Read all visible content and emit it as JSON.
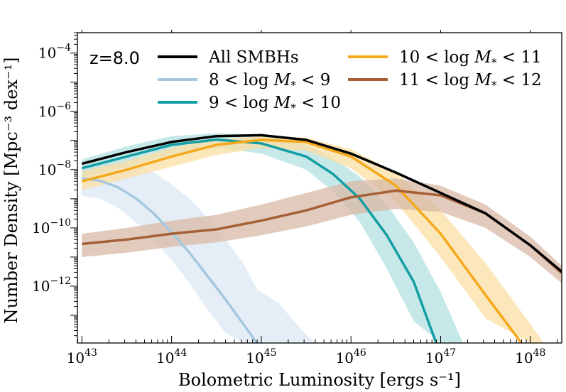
{
  "chart_data": {
    "type": "line",
    "annotation": "z=8.0",
    "xlabel": "Bolometric Luminosity [ergs s⁻¹]",
    "ylabel": "Number Density [Mpc⁻³ dex⁻¹]",
    "x_scale": "log",
    "y_scale": "log",
    "xlim_log10": [
      42.95,
      48.35
    ],
    "ylim_log10": [
      -13.95,
      -3.3
    ],
    "x_ticks": [
      {
        "value": 43,
        "base": "10",
        "exp": "43"
      },
      {
        "value": 44,
        "base": "10",
        "exp": "44"
      },
      {
        "value": 45,
        "base": "10",
        "exp": "45"
      },
      {
        "value": 46,
        "base": "10",
        "exp": "46"
      },
      {
        "value": 47,
        "base": "10",
        "exp": "47"
      },
      {
        "value": 48,
        "base": "10",
        "exp": "48"
      }
    ],
    "y_ticks": [
      {
        "value": -4,
        "base": "10",
        "exp": "−4"
      },
      {
        "value": -6,
        "base": "10",
        "exp": "−6"
      },
      {
        "value": -8,
        "base": "10",
        "exp": "−8"
      },
      {
        "value": -10,
        "base": "10",
        "exp": "−10"
      },
      {
        "value": -12,
        "base": "10",
        "exp": "−12"
      }
    ],
    "legend_position": "top",
    "series": [
      {
        "name": "All SMBHs",
        "label_html": "All SMBHs",
        "color": "#000000",
        "band": false,
        "x": [
          43.0,
          43.5,
          44.0,
          44.5,
          45.0,
          45.5,
          46.0,
          46.5,
          47.0,
          47.5,
          48.0,
          48.35
        ],
        "y": [
          -7.8,
          -7.4,
          -7.05,
          -6.85,
          -6.82,
          -6.98,
          -7.45,
          -8.1,
          -8.8,
          -9.5,
          -10.6,
          -11.5
        ]
      },
      {
        "name": "8 < log M* < 9",
        "label_parts": [
          "8 < log ",
          "M",
          "*",
          " < 9"
        ],
        "color": "#a6c8df",
        "band_color": "#dce8f3",
        "x": [
          43.0,
          43.2,
          43.4,
          43.6,
          43.8,
          44.0,
          44.2,
          44.4,
          44.6,
          44.8,
          44.95
        ],
        "y": [
          -8.3,
          -8.38,
          -8.6,
          -8.98,
          -9.5,
          -10.15,
          -10.85,
          -11.65,
          -12.45,
          -13.3,
          -13.95
        ],
        "band_lower": [
          -8.9,
          -9.0,
          -9.3,
          -9.8,
          -10.4,
          -11.1,
          -11.9,
          -12.8,
          -13.6,
          -13.95,
          -13.95
        ],
        "band_upper": [
          -7.95,
          -7.8,
          -7.78,
          -7.85,
          -8.1,
          -8.5,
          -9.0,
          -9.65,
          -10.4,
          -11.2,
          -12.1
        ],
        "band_x": [
          43.0,
          43.2,
          43.4,
          43.6,
          43.8,
          44.0,
          44.2,
          44.4,
          44.6,
          44.8,
          44.95
        ],
        "band_upper_ext_x": [
          45.2,
          45.45,
          45.6
        ],
        "band_upper_ext_y": [
          -12.6,
          -13.5,
          -13.95
        ]
      },
      {
        "name": "9 < log M* < 10",
        "label_parts": [
          "9 < log ",
          "M",
          "*",
          " < 10"
        ],
        "color": "#139ea3",
        "band_color": "#b3e0e1",
        "x": [
          43.0,
          43.5,
          44.0,
          44.5,
          45.0,
          45.5,
          45.8,
          46.1,
          46.4,
          46.7,
          46.95
        ],
        "y": [
          -7.95,
          -7.55,
          -7.15,
          -6.97,
          -7.1,
          -7.55,
          -8.15,
          -9.0,
          -10.25,
          -11.85,
          -13.95
        ],
        "band_x": [
          43.0,
          43.5,
          44.0,
          44.5,
          45.0,
          45.5,
          45.8,
          46.1,
          46.4,
          46.7,
          47.0,
          47.25
        ],
        "band_upper": [
          -7.65,
          -7.2,
          -6.85,
          -6.75,
          -6.8,
          -7.15,
          -7.6,
          -8.25,
          -9.2,
          -10.5,
          -12.2,
          -13.95
        ],
        "band_lower": [
          -8.25,
          -7.9,
          -7.5,
          -7.25,
          -7.45,
          -8.0,
          -8.75,
          -9.8,
          -11.4,
          -13.2,
          -13.95,
          -13.95
        ]
      },
      {
        "name": "10 < log M* < 11",
        "label_parts": [
          "10 < log ",
          "M",
          "*",
          " < 11"
        ],
        "color": "#f5a81c",
        "band_color": "#fbdfa3",
        "x": [
          43.0,
          43.5,
          44.0,
          44.5,
          45.0,
          45.5,
          46.0,
          46.5,
          47.0,
          47.5,
          47.9
        ],
        "y": [
          -8.4,
          -8.0,
          -7.55,
          -7.15,
          -6.98,
          -7.05,
          -7.55,
          -8.55,
          -10.2,
          -12.3,
          -13.95
        ],
        "band_x": [
          43.0,
          43.5,
          44.0,
          44.5,
          45.0,
          45.5,
          46.0,
          46.5,
          47.0,
          47.5,
          48.0,
          48.15
        ],
        "band_upper": [
          -8.05,
          -7.7,
          -7.25,
          -6.95,
          -6.85,
          -6.9,
          -7.3,
          -8.1,
          -9.4,
          -11.2,
          -13.3,
          -13.95
        ],
        "band_lower": [
          -8.7,
          -8.3,
          -7.9,
          -7.5,
          -7.25,
          -7.35,
          -7.95,
          -9.1,
          -11.0,
          -13.1,
          -13.95,
          -13.95
        ]
      },
      {
        "name": "11 < log M* < 12",
        "label_parts": [
          "11 < log ",
          "M",
          "*",
          " < 12"
        ],
        "color": "#a65f36",
        "band_color": "#d8b9a5",
        "x": [
          43.0,
          43.5,
          44.0,
          44.5,
          45.0,
          45.5,
          46.0,
          46.5,
          47.0,
          47.5,
          48.0,
          48.35
        ],
        "y": [
          -10.55,
          -10.4,
          -10.2,
          -10.05,
          -9.75,
          -9.4,
          -8.95,
          -8.72,
          -8.88,
          -9.5,
          -10.6,
          -11.55
        ],
        "band_x": [
          43.0,
          43.5,
          44.0,
          44.5,
          45.0,
          45.5,
          46.0,
          46.5,
          47.0,
          47.5,
          48.0,
          48.35
        ],
        "band_upper": [
          -10.2,
          -10.0,
          -9.75,
          -9.55,
          -9.2,
          -8.8,
          -8.4,
          -8.3,
          -8.55,
          -9.2,
          -10.3,
          -11.3
        ],
        "band_lower": [
          -11.0,
          -10.85,
          -10.65,
          -10.5,
          -10.25,
          -9.95,
          -9.55,
          -9.35,
          -9.45,
          -10.0,
          -11.0,
          -11.9
        ]
      }
    ]
  }
}
